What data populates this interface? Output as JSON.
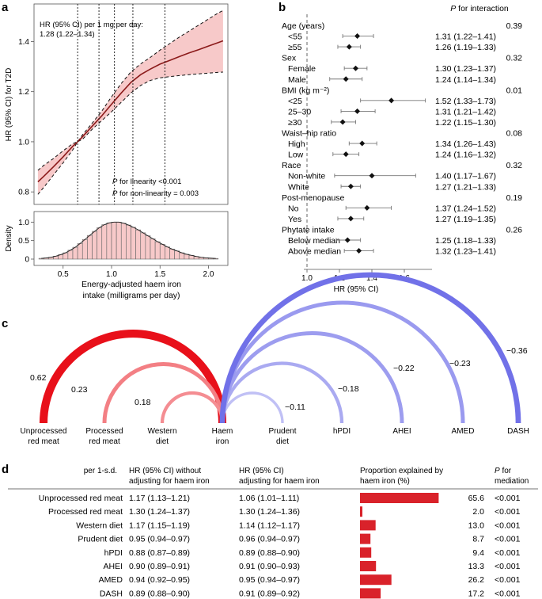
{
  "panel_labels": {
    "a": "a",
    "b": "b",
    "c": "c",
    "d": "d"
  },
  "chart_data": [
    {
      "id": "a_top",
      "type": "line",
      "title": "",
      "ylabel": "HR (95% CI) for T2D",
      "xlim": [
        0.2,
        2.2
      ],
      "ylim": [
        0.75,
        1.55
      ],
      "yticks": [
        0.8,
        1.0,
        1.2,
        1.4
      ],
      "ytick_labels": [
        "0.8",
        "1.0",
        "1.2",
        "1.4"
      ],
      "annotation_line1": "HR (95% CI) per 1 mg per day:",
      "annotation_line2": "1.28 (1.22–1.34)",
      "p_linearity_prefix": "P",
      "p_linearity_text": " for linearity <0.001",
      "p_nonlinearity_prefix": "P",
      "p_nonlinearity_text": " for non-linearity = 0.003",
      "knots": [
        0.65,
        0.87,
        1.03,
        1.22,
        1.55
      ],
      "x": [
        0.24,
        0.3,
        0.4,
        0.5,
        0.6,
        0.65,
        0.7,
        0.8,
        0.9,
        1.0,
        1.1,
        1.2,
        1.3,
        1.4,
        1.5,
        1.6,
        1.7,
        1.8,
        1.9,
        2.0,
        2.1,
        2.15
      ],
      "hr": [
        0.84,
        0.862,
        0.9,
        0.94,
        0.982,
        1.0,
        1.02,
        1.062,
        1.104,
        1.15,
        1.195,
        1.237,
        1.268,
        1.29,
        1.31,
        1.325,
        1.34,
        1.355,
        1.368,
        1.382,
        1.396,
        1.403
      ],
      "lower": [
        0.79,
        0.818,
        0.867,
        0.916,
        0.968,
        1.0,
        1.01,
        1.05,
        1.085,
        1.12,
        1.158,
        1.195,
        1.225,
        1.245,
        1.255,
        1.26,
        1.264,
        1.268,
        1.271,
        1.274,
        1.277,
        1.278
      ],
      "upper": [
        0.886,
        0.906,
        0.933,
        0.964,
        0.993,
        1.0,
        1.028,
        1.074,
        1.123,
        1.18,
        1.233,
        1.279,
        1.311,
        1.337,
        1.366,
        1.392,
        1.418,
        1.442,
        1.466,
        1.49,
        1.514,
        1.524
      ]
    },
    {
      "id": "a_density",
      "type": "bar",
      "ylabel": "Density",
      "xlabel_line1": "Energy-adjusted haem iron",
      "xlabel_line2": "intake (milligrams per day)",
      "xlim": [
        0.2,
        2.2
      ],
      "ylim": [
        0,
        1.2
      ],
      "xticks": [
        0.5,
        1.0,
        1.5,
        2.0
      ],
      "xtick_labels": [
        "0.5",
        "1.0",
        "1.5",
        "2.0"
      ],
      "yticks": [
        0,
        0.5,
        1.0
      ],
      "ytick_labels": [
        "0",
        "0.5",
        "1.0"
      ],
      "bin_start": 0.25,
      "bin_width": 0.05,
      "values": [
        0.02,
        0.03,
        0.05,
        0.08,
        0.12,
        0.17,
        0.24,
        0.32,
        0.42,
        0.53,
        0.64,
        0.75,
        0.85,
        0.93,
        0.98,
        1.0,
        1.0,
        0.97,
        0.92,
        0.86,
        0.79,
        0.71,
        0.63,
        0.55,
        0.47,
        0.4,
        0.33,
        0.27,
        0.22,
        0.17,
        0.13,
        0.1,
        0.07,
        0.05,
        0.035,
        0.025,
        0.018
      ]
    },
    {
      "id": "b_forest",
      "type": "scatter",
      "xlabel": "HR (95% CI)",
      "xlim": [
        0.95,
        1.8
      ],
      "xticks": [
        1.0,
        1.2,
        1.4,
        1.6
      ],
      "xtick_labels": [
        "1.0",
        "1.2",
        "1.4",
        "1.6"
      ],
      "p_header_prefix": "P",
      "p_header_text": " for interaction",
      "rows": [
        {
          "label": "Age (years)",
          "header": true,
          "p": "0.39"
        },
        {
          "label": "<55",
          "hr": 1.31,
          "lo": 1.22,
          "hi": 1.41,
          "text": "1.31 (1.22–1.41)"
        },
        {
          "label": "≥55",
          "hr": 1.26,
          "lo": 1.19,
          "hi": 1.33,
          "text": "1.26 (1.19–1.33)"
        },
        {
          "label": "Sex",
          "header": true,
          "p": "0.32"
        },
        {
          "label": "Female",
          "hr": 1.3,
          "lo": 1.23,
          "hi": 1.37,
          "text": "1.30 (1.23–1.37)"
        },
        {
          "label": "Male",
          "hr": 1.24,
          "lo": 1.14,
          "hi": 1.34,
          "text": "1.24 (1.14–1.34)"
        },
        {
          "label": "BMI (kg m⁻²)",
          "header": true,
          "p": "0.01"
        },
        {
          "label": "<25",
          "hr": 1.52,
          "lo": 1.33,
          "hi": 1.73,
          "text": "1.52 (1.33–1.73)"
        },
        {
          "label": "25–30",
          "hr": 1.31,
          "lo": 1.21,
          "hi": 1.42,
          "text": "1.31 (1.21–1.42)"
        },
        {
          "label": "≥30",
          "hr": 1.22,
          "lo": 1.15,
          "hi": 1.3,
          "text": "1.22 (1.15–1.30)"
        },
        {
          "label": "Waist–hip ratio",
          "header": true,
          "p": "0.08"
        },
        {
          "label": "High",
          "hr": 1.34,
          "lo": 1.26,
          "hi": 1.43,
          "text": "1.34 (1.26–1.43)"
        },
        {
          "label": "Low",
          "hr": 1.24,
          "lo": 1.16,
          "hi": 1.32,
          "text": "1.24 (1.16–1.32)"
        },
        {
          "label": "Race",
          "header": true,
          "p": "0.32"
        },
        {
          "label": "Non-white",
          "hr": 1.4,
          "lo": 1.17,
          "hi": 1.67,
          "text": "1.40 (1.17–1.67)"
        },
        {
          "label": "White",
          "hr": 1.27,
          "lo": 1.21,
          "hi": 1.33,
          "text": "1.27 (1.21–1.33)"
        },
        {
          "label": "Post-menopause",
          "header": true,
          "p": "0.19"
        },
        {
          "label": "No",
          "hr": 1.37,
          "lo": 1.24,
          "hi": 1.52,
          "text": "1.37 (1.24–1.52)"
        },
        {
          "label": "Yes",
          "hr": 1.27,
          "lo": 1.19,
          "hi": 1.35,
          "text": "1.27 (1.19–1.35)"
        },
        {
          "label": "Phytate intake",
          "header": true,
          "p": "0.26"
        },
        {
          "label": "Below median",
          "hr": 1.25,
          "lo": 1.18,
          "hi": 1.33,
          "text": "1.25 (1.18–1.33)"
        },
        {
          "label": "Above median",
          "hr": 1.32,
          "lo": 1.23,
          "hi": 1.41,
          "text": "1.32 (1.23–1.41)"
        }
      ]
    },
    {
      "id": "c_arcs",
      "type": "arc",
      "center": {
        "label_line1": "Haem",
        "label_line2": "iron"
      },
      "positive_color": "#e8101a",
      "negative_color": "#7070e8",
      "nodes": [
        {
          "line1": "Unprocessed",
          "line2": "red meat",
          "r": 0.62,
          "r_label": "0.62"
        },
        {
          "line1": "Processed",
          "line2": "red meat",
          "r": 0.23,
          "r_label": "0.23"
        },
        {
          "line1": "Western",
          "line2": "diet",
          "r": 0.18,
          "r_label": "0.18"
        },
        {
          "line1": "Prudent",
          "line2": "diet",
          "r": -0.11,
          "r_label": "−0.11"
        },
        {
          "line1": "hPDI",
          "line2": "",
          "r": -0.18,
          "r_label": "−0.18"
        },
        {
          "line1": "AHEI",
          "line2": "",
          "r": -0.22,
          "r_label": "−0.22"
        },
        {
          "line1": "AMED",
          "line2": "",
          "r": -0.23,
          "r_label": "−0.23"
        },
        {
          "line1": "DASH",
          "line2": "",
          "r": -0.36,
          "r_label": "−0.36"
        }
      ]
    },
    {
      "id": "d_table",
      "type": "table",
      "bar_color": "#d9222a",
      "bar_max": 66,
      "headers": {
        "col0": "per 1-s.d.",
        "col1_line1": "HR (95% CI) without",
        "col1_line2": "adjusting for haem iron",
        "col2_line1": "HR (95% CI)",
        "col2_line2": "adjusting for haem iron",
        "col3_line1": "Proportion explained by",
        "col3_line2": "haem iron (%)",
        "col4_line1_prefix": "P",
        "col4_line1_text": " for",
        "col4_line2": "mediation"
      },
      "rows": [
        {
          "name": "Unprocessed red meat",
          "hr_without": "1.17 (1.13–1.21)",
          "hr_with": "1.06 (1.01–1.11)",
          "prop": 65.6,
          "prop_text": "65.6",
          "p": "<0.001"
        },
        {
          "name": "Processed red meat",
          "hr_without": "1.30 (1.24–1.37)",
          "hr_with": "1.30 (1.24–1.36)",
          "prop": 2.0,
          "prop_text": "2.0",
          "p": "<0.001"
        },
        {
          "name": "Western diet",
          "hr_without": "1.17 (1.15–1.19)",
          "hr_with": "1.14 (1.12–1.17)",
          "prop": 13.0,
          "prop_text": "13.0",
          "p": "<0.001"
        },
        {
          "name": "Prudent diet",
          "hr_without": "0.95 (0.94–0.97)",
          "hr_with": "0.96 (0.94–0.97)",
          "prop": 8.7,
          "prop_text": "8.7",
          "p": "<0.001"
        },
        {
          "name": "hPDI",
          "hr_without": "0.88 (0.87–0.89)",
          "hr_with": "0.89 (0.88–0.90)",
          "prop": 9.4,
          "prop_text": "9.4",
          "p": "<0.001"
        },
        {
          "name": "AHEI",
          "hr_without": "0.90 (0.89–0.91)",
          "hr_with": "0.91 (0.90–0.93)",
          "prop": 13.3,
          "prop_text": "13.3",
          "p": "<0.001"
        },
        {
          "name": "AMED",
          "hr_without": "0.94 (0.92–0.95)",
          "hr_with": "0.95 (0.94–0.97)",
          "prop": 26.2,
          "prop_text": "26.2",
          "p": "<0.001"
        },
        {
          "name": "DASH",
          "hr_without": "0.89 (0.88–0.90)",
          "hr_with": "0.91 (0.89–0.92)",
          "prop": 17.2,
          "prop_text": "17.2",
          "p": "<0.001"
        }
      ]
    }
  ]
}
